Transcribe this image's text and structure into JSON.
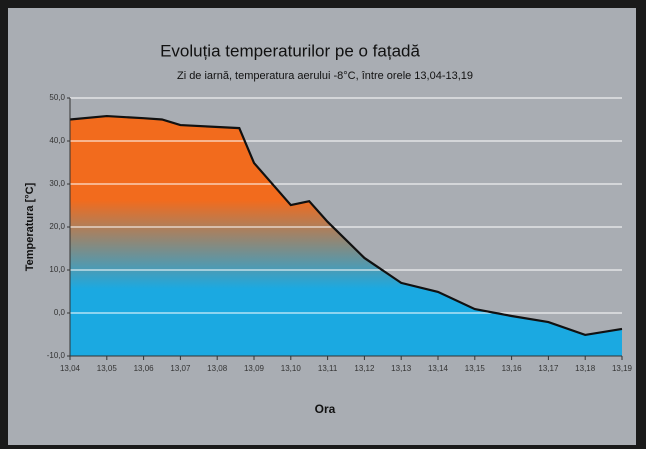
{
  "chart_data": {
    "type": "area",
    "title": "Evoluția temperaturilor pe o fațadă",
    "subtitle": "Zi de iarnă, temperatura aerului -8°C, între orele 13,04-13,19",
    "ylabel": "Temperatura [°C]",
    "xlabel": "Ora",
    "x": [
      13.04,
      13.05,
      13.06,
      13.065,
      13.07,
      13.086,
      13.09,
      13.1,
      13.105,
      13.11,
      13.12,
      13.13,
      13.14,
      13.15,
      13.16,
      13.17,
      13.18,
      13.19
    ],
    "values": [
      45,
      45.8,
      45.3,
      45,
      43.7,
      43,
      34.9,
      25.1,
      26,
      21.2,
      12.8,
      7,
      4.9,
      0.9,
      -0.7,
      -2.1,
      -5.1,
      -3.7
    ],
    "gradient_colors": [
      "#f26b1d",
      "#1ba9e1"
    ],
    "line_color": "#111111",
    "grid": true,
    "xlim": [
      13.04,
      13.19
    ],
    "xticks": [
      {
        "value": 13.04,
        "label": "13,04"
      },
      {
        "value": 13.05,
        "label": "13,05"
      },
      {
        "value": 13.06,
        "label": "13,06"
      },
      {
        "value": 13.07,
        "label": "13,07"
      },
      {
        "value": 13.08,
        "label": "13,08"
      },
      {
        "value": 13.09,
        "label": "13,09"
      },
      {
        "value": 13.1,
        "label": "13,10"
      },
      {
        "value": 13.11,
        "label": "13,11"
      },
      {
        "value": 13.12,
        "label": "13,12"
      },
      {
        "value": 13.13,
        "label": "13,13"
      },
      {
        "value": 13.14,
        "label": "13,14"
      },
      {
        "value": 13.15,
        "label": "13,15"
      },
      {
        "value": 13.16,
        "label": "13,16"
      },
      {
        "value": 13.17,
        "label": "13,17"
      },
      {
        "value": 13.18,
        "label": "13,18"
      },
      {
        "value": 13.19,
        "label": "13,19"
      }
    ],
    "ylim": [
      -10,
      50
    ],
    "yticks": [
      {
        "value": -10,
        "label": "-10,0"
      },
      {
        "value": 0,
        "label": "0,0"
      },
      {
        "value": 10,
        "label": "10,0"
      },
      {
        "value": 20,
        "label": "20,0"
      },
      {
        "value": 30,
        "label": "30,0"
      },
      {
        "value": 40,
        "label": "40,0"
      },
      {
        "value": 50,
        "label": "50,0"
      }
    ]
  }
}
